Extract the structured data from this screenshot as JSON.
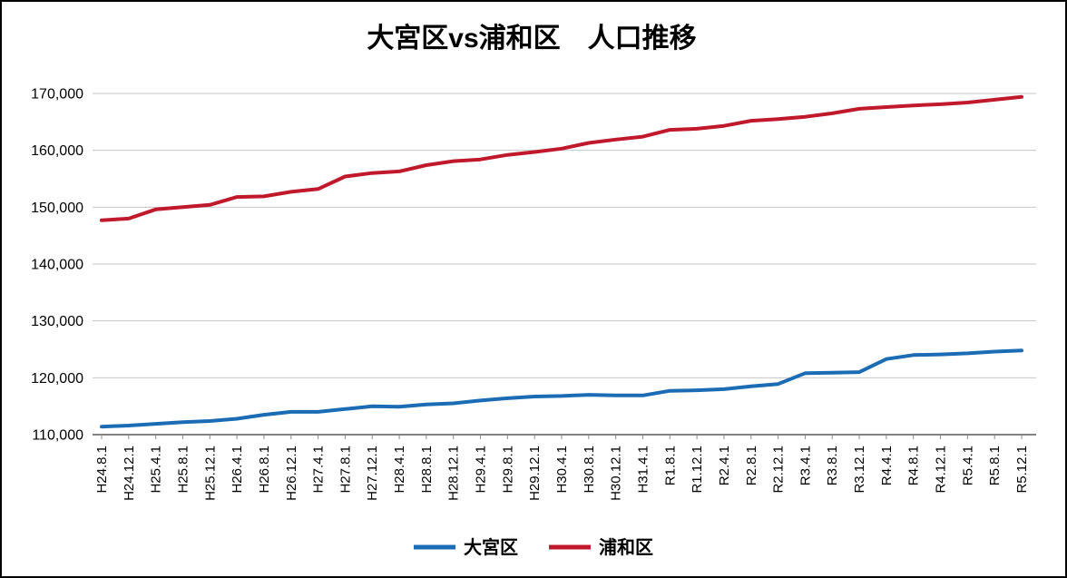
{
  "chart_data": {
    "type": "line",
    "title": "大宮区vs浦和区　人口推移",
    "xlabel": "",
    "ylabel": "",
    "ylim": [
      110000,
      170000
    ],
    "ytick_step": 10000,
    "ytick_labels": [
      "110,000",
      "120,000",
      "130,000",
      "140,000",
      "150,000",
      "160,000",
      "170,000"
    ],
    "grid": true,
    "legend_position": "bottom",
    "categories": [
      "H24.8.1",
      "H24.12.1",
      "H25.4.1",
      "H25.8.1",
      "H25.12.1",
      "H26.4.1",
      "H26.8.1",
      "H26.12.1",
      "H27.4.1",
      "H27.8.1",
      "H27.12.1",
      "H28.4.1",
      "H28.8.1",
      "H28.12.1",
      "H29.4.1",
      "H29.8.1",
      "H29.12.1",
      "H30.4.1",
      "H30.8.1",
      "H30.12.1",
      "H31.4.1",
      "R1.8.1",
      "R1.12.1",
      "R2.4.1",
      "R2.8.1",
      "R2.12.1",
      "R3.4.1",
      "R3.8.1",
      "R3.12.1",
      "R4.4.1",
      "R4.8.1",
      "R4.12.1",
      "R5.4.1",
      "R5.8.1",
      "R5.12.1"
    ],
    "series": [
      {
        "name": "大宮区",
        "color": "#1b6cb5",
        "values": [
          111400,
          111600,
          111900,
          112200,
          112400,
          112800,
          113500,
          114000,
          114000,
          114500,
          115000,
          114900,
          115300,
          115500,
          116000,
          116400,
          116700,
          116800,
          117000,
          116900,
          116900,
          117700,
          117800,
          118000,
          118500,
          118900,
          120800,
          120900,
          121000,
          123300,
          124000,
          124100,
          124300,
          124600,
          124800
        ]
      },
      {
        "name": "浦和区",
        "color": "#c0192c",
        "values": [
          147700,
          148000,
          149600,
          150000,
          150400,
          151800,
          151900,
          152700,
          153200,
          155400,
          156000,
          156300,
          157400,
          158100,
          158400,
          159200,
          159700,
          160300,
          161300,
          161900,
          162400,
          163600,
          163800,
          164300,
          165200,
          165500,
          165900,
          166500,
          167300,
          167600,
          167900,
          168100,
          168400,
          168900,
          169400
        ]
      }
    ],
    "colors": {
      "gridline": "#c6c6c6",
      "axis": "#595959",
      "tick": "#8c8c8c"
    }
  }
}
